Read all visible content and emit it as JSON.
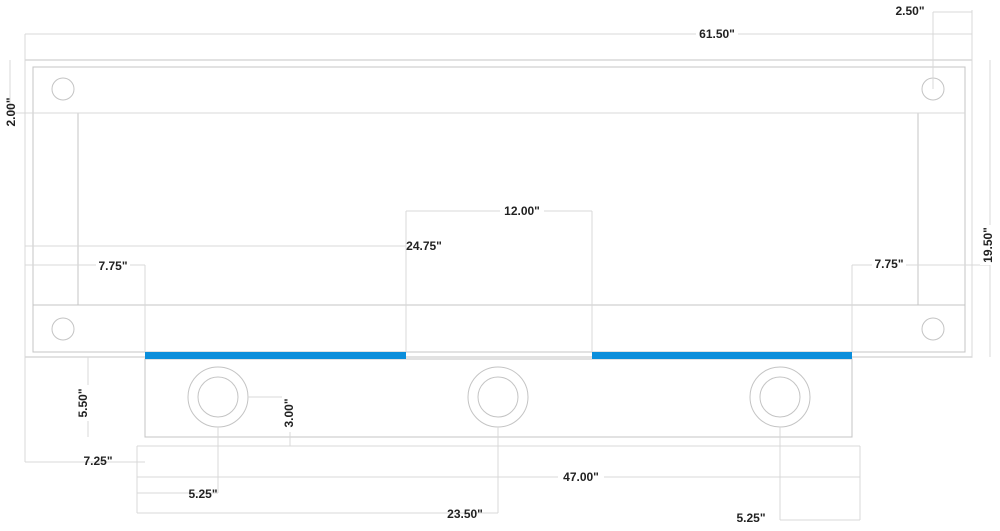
{
  "dimensions": [
    "2.50\"",
    "61.50\"",
    "2.00\"",
    "12.00\"",
    "24.75\"",
    "7.75\"",
    "7.75\"",
    "19.50\"",
    "5.50\"",
    "3.00\"",
    "7.25\"",
    "47.00\"",
    "5.25\"",
    "23.50\"",
    "5.25\""
  ]
}
